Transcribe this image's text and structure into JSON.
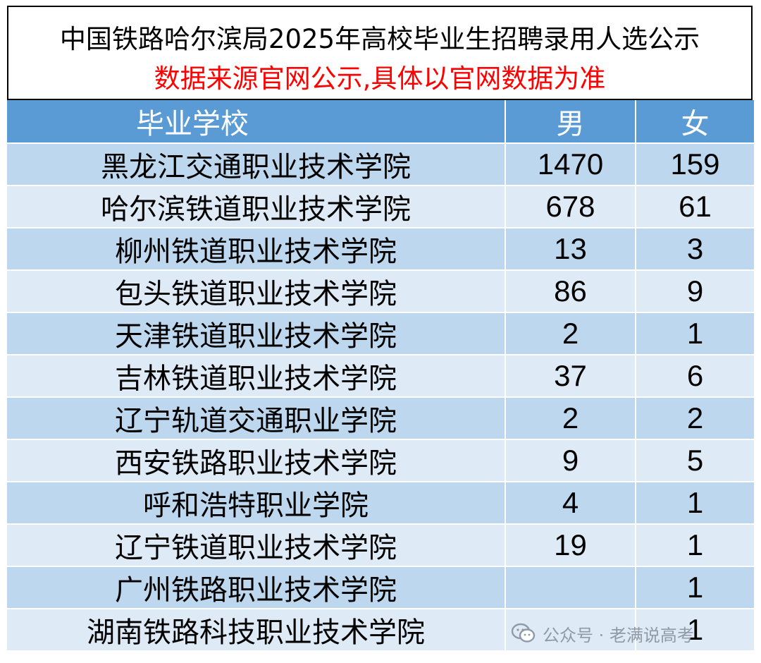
{
  "title": "中国铁路哈尔滨局2025年高校毕业生招聘录用人选公示",
  "subtitle": "数据来源官网公示,具体以官网数据为准",
  "colors": {
    "header_bg": "#5b9bd5",
    "row_dark": "#bdd7ee",
    "row_light": "#deebf7",
    "subtitle": "#ff0000"
  },
  "table": {
    "headers": {
      "school": "毕业学校",
      "male": "男",
      "female": "女"
    },
    "rows": [
      {
        "school": "黑龙江交通职业技术学院",
        "male": "1470",
        "female": "159"
      },
      {
        "school": "哈尔滨铁道职业技术学院",
        "male": "678",
        "female": "61"
      },
      {
        "school": "柳州铁道职业技术学院",
        "male": "13",
        "female": "3"
      },
      {
        "school": "包头铁道职业技术学院",
        "male": "86",
        "female": "9"
      },
      {
        "school": "天津铁道职业技术学院",
        "male": "2",
        "female": "1"
      },
      {
        "school": "吉林铁道职业技术学院",
        "male": "37",
        "female": "6"
      },
      {
        "school": "辽宁轨道交通职业学院",
        "male": "2",
        "female": "2"
      },
      {
        "school": "西安铁路职业技术学院",
        "male": "9",
        "female": "5"
      },
      {
        "school": "呼和浩特职业学院",
        "male": "4",
        "female": "1"
      },
      {
        "school": "辽宁铁道职业技术学院",
        "male": "19",
        "female": "1"
      },
      {
        "school": "广州铁路职业技术学院",
        "male": "",
        "female": "1"
      },
      {
        "school": "湖南铁路科技职业技术学院",
        "male": "",
        "female": "1"
      }
    ]
  },
  "watermark": {
    "icon": "wechat-icon",
    "text": "公众号 · 老满说高考"
  }
}
